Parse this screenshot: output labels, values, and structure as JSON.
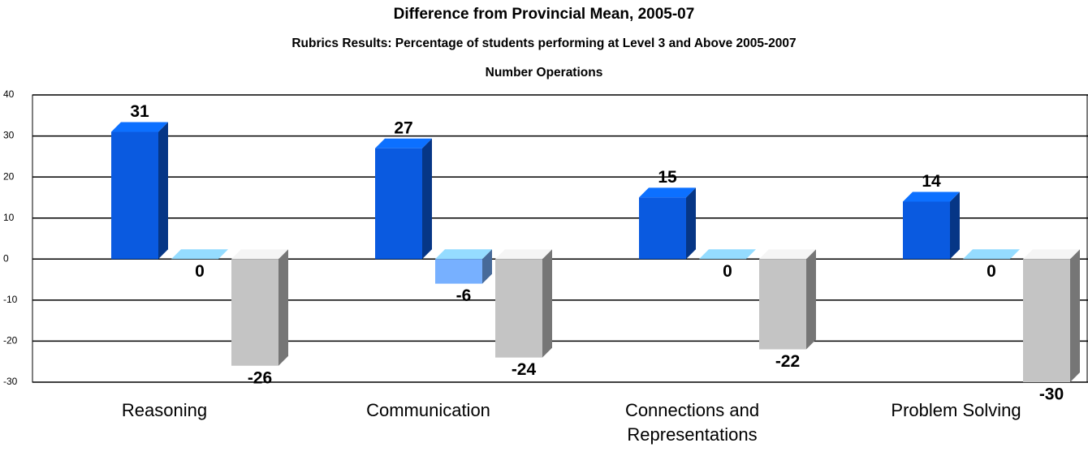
{
  "chart_data": {
    "type": "bar",
    "title": "Difference from Provincial Mean, 2005-07",
    "subtitle": "Rubrics Results: Percentage of students performing at Level 3 and Above 2005-2007",
    "subtitle2": "Number Operations",
    "categories": [
      "Reasoning",
      "Communication",
      "Connections and Representations",
      "Problem Solving"
    ],
    "series": [
      {
        "color": "#0a5ae0",
        "values": [
          31,
          27,
          15,
          14
        ]
      },
      {
        "color": "#77b0ff",
        "values": [
          0,
          -6,
          0,
          0
        ]
      },
      {
        "color": "#c4c4c4",
        "values": [
          -26,
          -24,
          -22,
          -30
        ]
      }
    ],
    "ylim": [
      -30,
      40
    ],
    "yticks": [
      -30,
      -20,
      -10,
      0,
      10,
      20,
      30,
      40
    ],
    "grid": true
  }
}
